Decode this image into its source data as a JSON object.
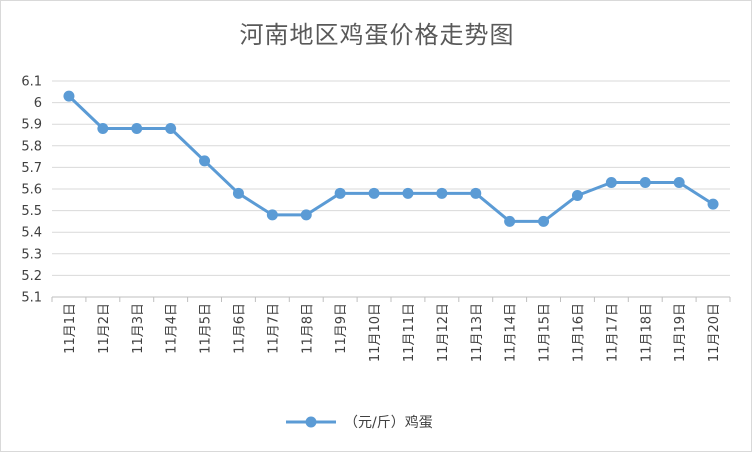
{
  "chart_data": {
    "type": "line",
    "title": "河南地区鸡蛋价格走势图",
    "xlabel": "",
    "ylabel": "",
    "categories": [
      "11月1日",
      "11月2日",
      "11月3日",
      "11月4日",
      "11月5日",
      "11月6日",
      "11月7日",
      "11月8日",
      "11月9日",
      "11月10日",
      "11月11日",
      "11月12日",
      "11月13日",
      "11月14日",
      "11月15日",
      "11月16日",
      "11月17日",
      "11月18日",
      "11月19日",
      "11月20日"
    ],
    "series": [
      {
        "name": "（元/斤）鸡蛋",
        "color": "#5b9bd5",
        "values": [
          6.03,
          5.88,
          5.88,
          5.88,
          5.73,
          5.58,
          5.48,
          5.48,
          5.58,
          5.58,
          5.58,
          5.58,
          5.58,
          5.45,
          5.45,
          5.57,
          5.63,
          5.63,
          5.63,
          5.53
        ]
      }
    ],
    "ylim": [
      5.1,
      6.1
    ],
    "yticks": [
      "5.1",
      "5.2",
      "5.3",
      "5.4",
      "5.5",
      "5.6",
      "5.7",
      "5.8",
      "5.9",
      "6",
      "6.1"
    ],
    "grid": true,
    "legend_position": "bottom"
  }
}
